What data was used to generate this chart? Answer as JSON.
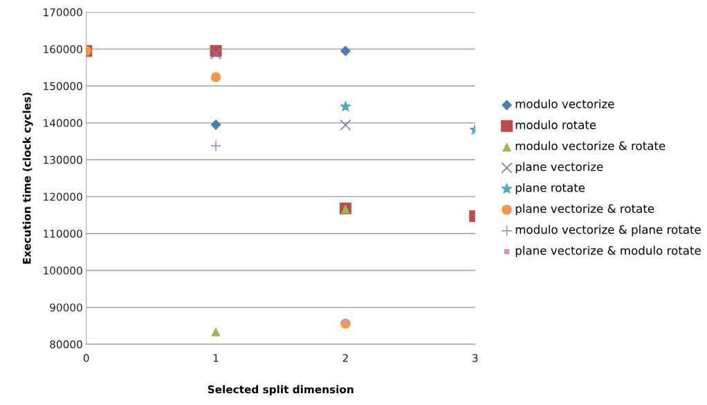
{
  "chart_data": {
    "type": "scatter",
    "xlabel": "Selected split dimension",
    "ylabel": "Execution time (clock cycles)",
    "x": [
      0,
      1,
      2,
      3
    ],
    "xlim": [
      0,
      3
    ],
    "xticks": [
      0,
      1,
      2,
      3
    ],
    "ylim": [
      80000,
      170000
    ],
    "yticks": [
      80000,
      90000,
      100000,
      110000,
      120000,
      130000,
      140000,
      150000,
      160000,
      170000
    ],
    "grid": "y",
    "legend": "right",
    "series": [
      {
        "name": "modulo vectorize",
        "color": "#4a7ebb",
        "marker": "diamond",
        "values": [
          null,
          139500,
          159500,
          null
        ]
      },
      {
        "name": "modulo rotate",
        "color": "#be4b48",
        "marker": "square",
        "values": [
          159500,
          159500,
          116800,
          114700
        ]
      },
      {
        "name": "modulo vectorize & rotate",
        "color": "#98b954",
        "marker": "triangle",
        "values": [
          null,
          83400,
          116600,
          null
        ]
      },
      {
        "name": "plane vectorize",
        "color": "#8a74a8",
        "marker": "cross",
        "values": [
          null,
          158700,
          139400,
          null
        ]
      },
      {
        "name": "plane rotate",
        "color": "#4bacc6",
        "marker": "star",
        "values": [
          null,
          null,
          144400,
          138100
        ]
      },
      {
        "name": "plane vectorize & rotate",
        "color": "#f79646",
        "marker": "circle",
        "values": [
          159500,
          152400,
          85600,
          null
        ]
      },
      {
        "name": "modulo vectorize & plane rotate",
        "color": "#7f9fc7",
        "marker": "plus",
        "values": [
          null,
          133800,
          null,
          null
        ]
      },
      {
        "name": "plane vectorize & modulo rotate",
        "color": "#e6918f",
        "marker": "square",
        "values": [
          null,
          null,
          86100,
          null
        ]
      }
    ]
  }
}
